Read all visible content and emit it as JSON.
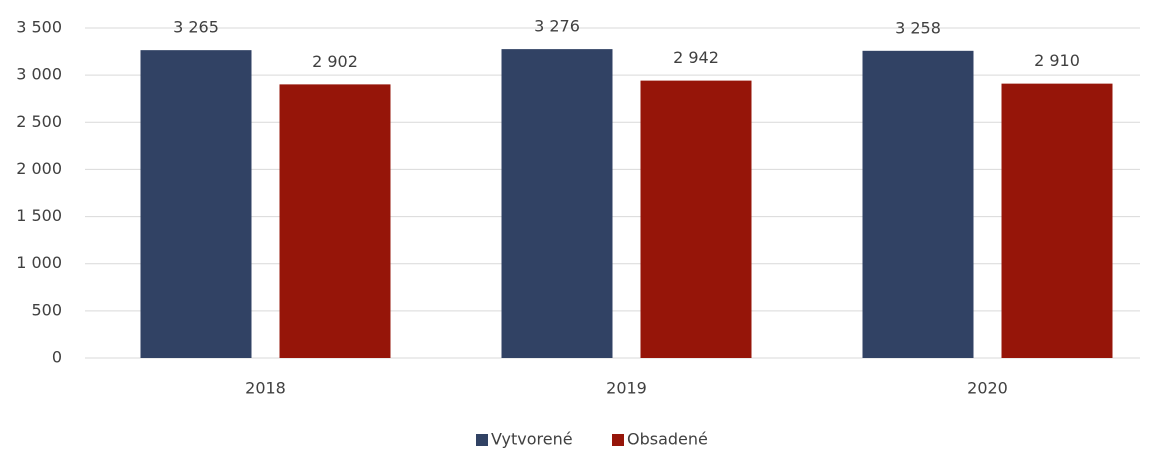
{
  "chart_data": {
    "type": "bar",
    "categories": [
      "2018",
      "2019",
      "2020"
    ],
    "series": [
      {
        "name": "Vytvorené",
        "color": "#314264",
        "values": [
          3265,
          3276,
          3258
        ],
        "value_labels": [
          "3 265",
          "3 276",
          "3 258"
        ]
      },
      {
        "name": "Obsadené",
        "color": "#961509",
        "values": [
          2902,
          2942,
          2910
        ],
        "value_labels": [
          "2 902",
          "2 942",
          "2 910"
        ]
      }
    ],
    "ylim": [
      0,
      3500
    ],
    "yticks": [
      0,
      500,
      {
        "value": 1000,
        "label": "1 000"
      },
      {
        "value": 1500,
        "label": "1 500"
      },
      {
        "value": 2000,
        "label": "2 000"
      },
      {
        "value": 2500,
        "label": "2 500"
      },
      {
        "value": 3000,
        "label": "3 000"
      },
      {
        "value": 3500,
        "label": "3 500"
      }
    ],
    "grid": true,
    "legend": "bottom"
  }
}
